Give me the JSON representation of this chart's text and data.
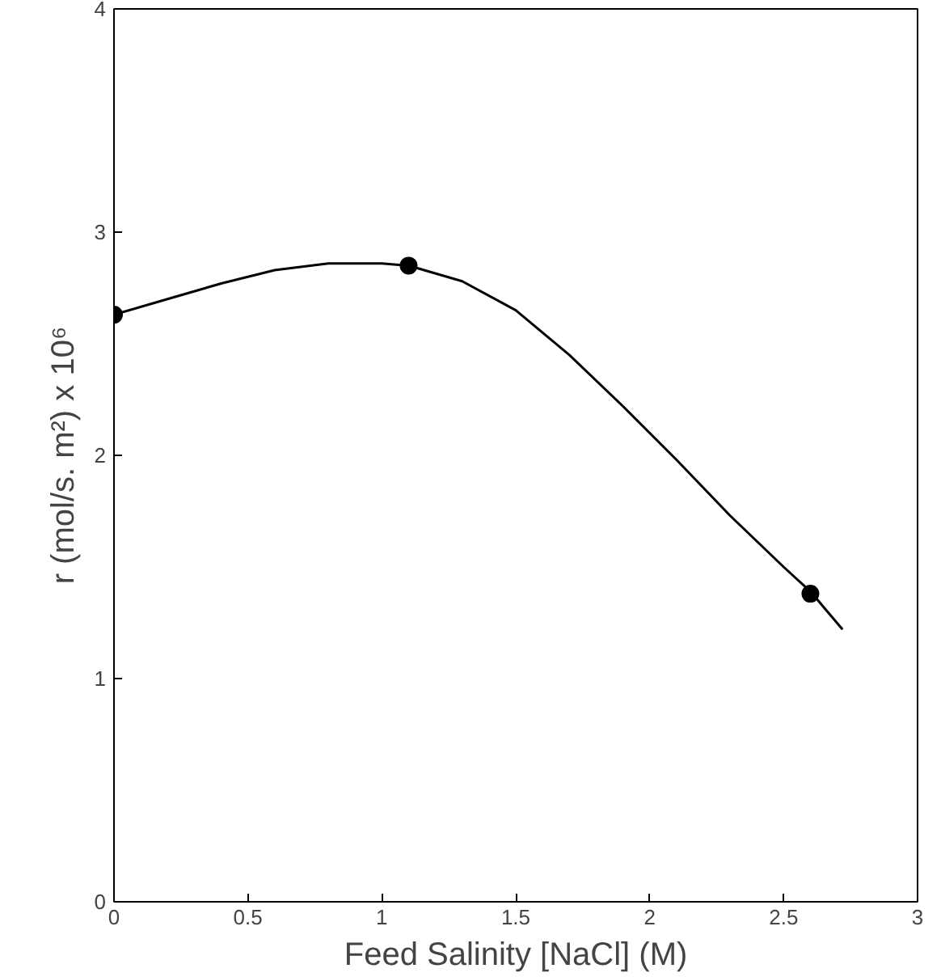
{
  "chart_data": {
    "type": "scatter",
    "xlabel": "Feed Salinity [NaCl] (M)",
    "ylabel": "r (mol/s. m²) x 10⁶",
    "xlim": [
      0,
      3
    ],
    "ylim": [
      0,
      4
    ],
    "xticks": [
      0,
      0.5,
      1,
      1.5,
      2,
      2.5,
      3
    ],
    "yticks": [
      0,
      1,
      2,
      3,
      4
    ],
    "grid": false,
    "series": [
      {
        "marker": "circle",
        "color": "#000000",
        "x": [
          0,
          1.1,
          2.6
        ],
        "values": [
          2.63,
          2.85,
          1.38
        ]
      },
      {
        "type": "line",
        "marker": "none",
        "line_style": "solid",
        "color": "#000000",
        "x": [
          0,
          0.2,
          0.4,
          0.6,
          0.8,
          1.0,
          1.1,
          1.3,
          1.5,
          1.7,
          1.9,
          2.1,
          2.3,
          2.5,
          2.6,
          2.72
        ],
        "values": [
          2.63,
          2.7,
          2.77,
          2.83,
          2.86,
          2.86,
          2.85,
          2.78,
          2.65,
          2.45,
          2.22,
          1.98,
          1.73,
          1.5,
          1.39,
          1.22
        ]
      }
    ]
  }
}
